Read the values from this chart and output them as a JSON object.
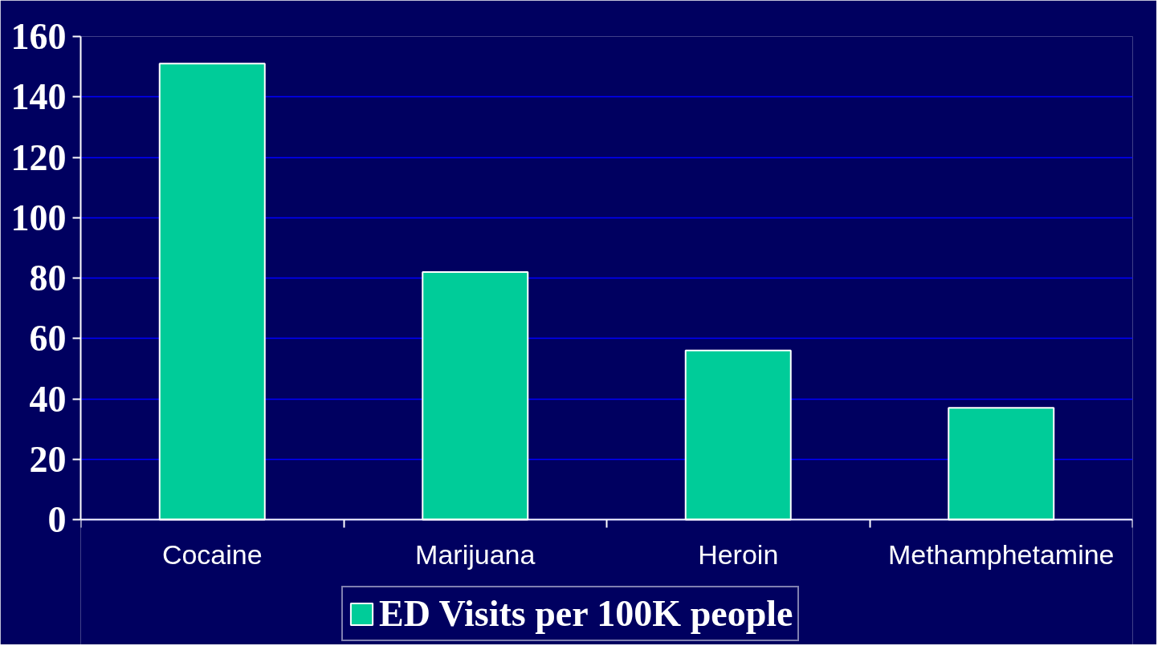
{
  "chart_data": {
    "type": "bar",
    "categories": [
      "Cocaine",
      "Marijuana",
      "Heroin",
      "Methamphetamine"
    ],
    "series": [
      {
        "name": "ED Visits per 100K people",
        "color": "#00cc99",
        "values": [
          151,
          82,
          56,
          37
        ]
      }
    ],
    "ylim": [
      0,
      160
    ],
    "yticks": [
      0,
      20,
      40,
      60,
      80,
      100,
      120,
      140,
      160
    ],
    "grid": "y",
    "legend": "bottom"
  }
}
